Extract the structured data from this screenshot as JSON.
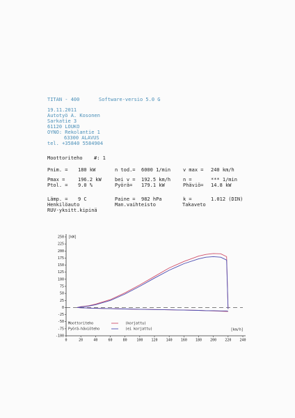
{
  "header": {
    "title": "TITAN - 400",
    "version": "Software-versio  5.0 G"
  },
  "customer": [
    "19.11.2011",
    "Autotyö A. Kosonen",
    "Sarkatie 3",
    "61120 LOUKO",
    "OYNO: Rekolantie 1",
    "63300 ALAVUS",
    "tel. +35840 5584904"
  ],
  "section": {
    "title": "Moottoriteho",
    "number": "#: 1"
  },
  "rows": [
    [
      "Pnim. =",
      "180 kW",
      "n tod.=",
      "6000 1/min",
      "v max =",
      "240 km/h"
    ],
    [
      "Pmax =",
      "196.2 kW",
      "bei v =",
      "192.5 km/h",
      "n =",
      "*** 1/min"
    ],
    [
      "Ptol. =",
      "9.0 %",
      "Pyörä=",
      "179.1 kW",
      "Phäviö=",
      "14.8 kW"
    ],
    [
      "Lämp. =",
      "9 C",
      "Paine =",
      "982 hPa",
      "k =",
      "1.012 (DIN)"
    ],
    [
      "Henkilöauto",
      "Man.vaihteisto",
      "Takaveto"
    ],
    [
      "RUV-yksitt.kipinä"
    ]
  ],
  "chart_data": {
    "type": "line",
    "y_label": "[kW]",
    "x_label": "[km/h]",
    "legend_rows": [
      "Moottoriteho",
      "Pyörä-häviöteho"
    ],
    "x": [
      15,
      20,
      30,
      40,
      60,
      80,
      100,
      120,
      140,
      160,
      180,
      190,
      200,
      210,
      218,
      220
    ],
    "series": [
      {
        "name": "(korjattu)",
        "color": "#d0506a",
        "values": [
          0,
          3,
          6,
          12,
          28,
          52,
          80,
          110,
          140,
          163,
          182,
          188,
          191,
          190,
          180,
          -5
        ]
      },
      {
        "name": "(ei korjattu)",
        "color": "#4a4ab0",
        "values": [
          0,
          2,
          5,
          10,
          25,
          48,
          75,
          104,
          132,
          155,
          172,
          178,
          180,
          178,
          168,
          -5
        ]
      },
      {
        "color": "#d0506a",
        "values": [
          0,
          -1,
          -2,
          -3,
          -4,
          -5,
          -6,
          -7,
          -8,
          -9,
          -10,
          -11,
          -12,
          -13,
          -14,
          -14
        ]
      },
      {
        "color": "#4a4ab0",
        "values": [
          0,
          -1,
          -2,
          -3,
          -4,
          -5,
          -6,
          -7,
          -8,
          -9,
          -10,
          -11,
          -11,
          -12,
          -12,
          -13
        ]
      }
    ],
    "xlim": [
      0,
      240
    ],
    "xticks": [
      0,
      20,
      40,
      60,
      80,
      100,
      120,
      140,
      160,
      180,
      200,
      220,
      240
    ],
    "ylim": [
      -100,
      250
    ],
    "yticks": [
      250,
      225,
      200,
      175,
      150,
      125,
      100,
      75,
      50,
      25,
      0,
      -25,
      -50,
      -75,
      -100
    ]
  }
}
